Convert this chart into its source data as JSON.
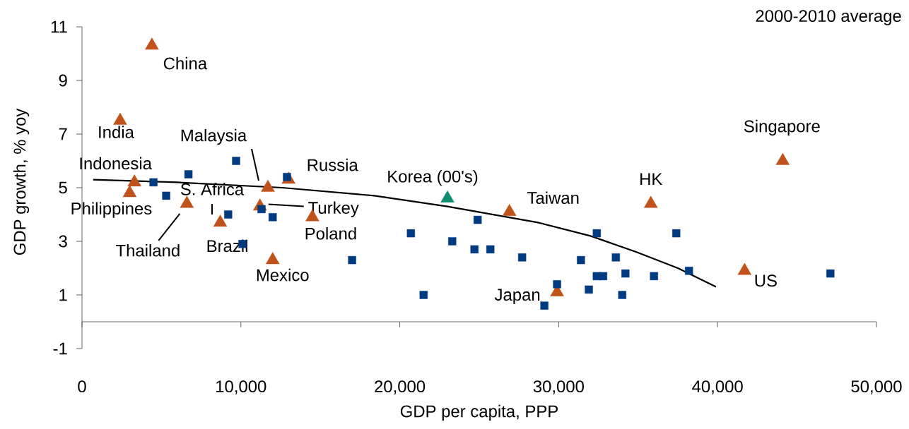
{
  "chart_data": {
    "type": "scatter",
    "xlabel": "GDP per capita, PPP",
    "ylabel": "GDP growth, % yoy",
    "xlim": [
      0,
      50000
    ],
    "ylim": [
      -1,
      11
    ],
    "xticks": [
      {
        "value": 0,
        "label": "0"
      },
      {
        "value": 10000,
        "label": "10,000"
      },
      {
        "value": 20000,
        "label": "20,000"
      },
      {
        "value": 30000,
        "label": "30,000"
      },
      {
        "value": 40000,
        "label": "40,000"
      },
      {
        "value": 50000,
        "label": "50,000"
      }
    ],
    "yticks": [
      -1,
      1,
      3,
      5,
      7,
      9,
      11
    ],
    "series": [
      {
        "type": "scatter",
        "marker": "square",
        "color": "#003a80",
        "x": [
          9700,
          6700,
          4500,
          5300,
          9200,
          10100,
          11300,
          12000,
          12900,
          17000,
          20700,
          21500,
          23300,
          24900,
          24700,
          25700,
          27700,
          29100,
          29900,
          32400,
          31400,
          33600,
          31900,
          32400,
          32800,
          34200,
          34000,
          36000,
          37400,
          38200,
          47100
        ],
        "values": [
          6.0,
          5.5,
          5.2,
          4.7,
          4.0,
          2.9,
          4.2,
          3.9,
          5.4,
          2.3,
          3.3,
          1.0,
          3.0,
          3.8,
          2.7,
          2.7,
          2.4,
          0.6,
          1.4,
          3.3,
          2.3,
          2.4,
          1.2,
          1.7,
          1.7,
          1.8,
          1.0,
          1.7,
          3.3,
          1.9,
          1.8
        ]
      },
      {
        "type": "scatter",
        "marker": "triangle",
        "color": "#c0521c",
        "x": [
          4400,
          2400,
          3300,
          3000,
          6600,
          8700,
          11700,
          11200,
          13000,
          14500,
          12000,
          26900,
          29900,
          35800,
          41700,
          44100
        ],
        "values": [
          10.3,
          7.5,
          5.2,
          4.8,
          4.4,
          3.7,
          5.0,
          4.3,
          5.3,
          3.9,
          2.3,
          4.1,
          1.1,
          4.4,
          1.9,
          6.0
        ]
      },
      {
        "type": "scatter",
        "marker": "triangle",
        "color": "#0e8c6e",
        "x": [
          23000
        ],
        "values": [
          4.6
        ]
      },
      {
        "type": "line",
        "marker": "none",
        "line_style": "solid",
        "color": "#000000",
        "x": [
          700,
          6000,
          12600,
          18400,
          23000,
          28700,
          32000,
          34900,
          37500,
          39900
        ],
        "values": [
          5.3,
          5.2,
          5.0,
          4.7,
          4.3,
          3.7,
          3.2,
          2.6,
          2.0,
          1.3
        ]
      }
    ],
    "annotations": [
      "2000-2010 average",
      {
        "text": "China",
        "x": 4400,
        "y": 10.3
      },
      {
        "text": "India",
        "x": 2400,
        "y": 7.5
      },
      {
        "text": "Indonesia",
        "x": 3300,
        "y": 5.2
      },
      {
        "text": "Philippines",
        "x": 3000,
        "y": 4.8
      },
      {
        "text": "Thailand",
        "x": 6600,
        "y": 4.4
      },
      {
        "text": "Brazil",
        "x": 8700,
        "y": 3.7
      },
      {
        "text": "Malaysia",
        "x": 11700,
        "y": 5.0
      },
      {
        "text": "Turkey",
        "x": 11200,
        "y": 4.3
      },
      {
        "text": "Russia",
        "x": 13000,
        "y": 5.3
      },
      {
        "text": "Poland",
        "x": 14500,
        "y": 3.9
      },
      {
        "text": "Mexico",
        "x": 12000,
        "y": 2.3
      },
      {
        "text": "Korea (00's)",
        "x": 23000,
        "y": 4.6
      },
      {
        "text": "Taiwan",
        "x": 26900,
        "y": 4.1
      },
      {
        "text": "Japan",
        "x": 29900,
        "y": 1.1
      },
      {
        "text": "HK",
        "x": 35800,
        "y": 4.4
      },
      {
        "text": "US",
        "x": 41700,
        "y": 1.9
      },
      {
        "text": "Singapore",
        "x": 44100,
        "y": 6.0
      },
      "S. Africa"
    ]
  }
}
